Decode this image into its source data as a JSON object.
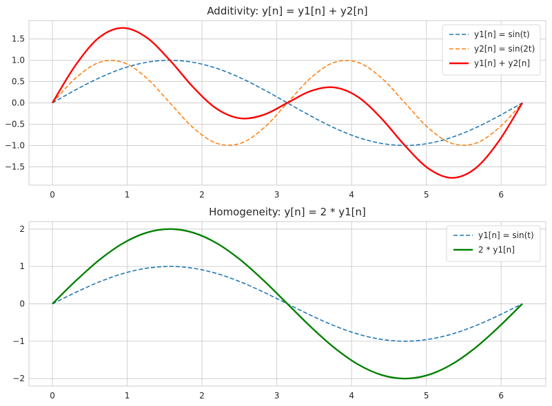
{
  "chart_data": [
    {
      "type": "line",
      "title": "Additivity: y[n] = y1[n] + y2[n]",
      "xlabel": "",
      "ylabel": "",
      "xlim": [
        -0.314,
        6.597
      ],
      "ylim": [
        -1.93,
        1.93
      ],
      "xticks": [
        0,
        1,
        2,
        3,
        4,
        5,
        6
      ],
      "xtick_labels": [
        "0",
        "1",
        "2",
        "3",
        "4",
        "5",
        "6"
      ],
      "yticks": [
        -1.5,
        -1.0,
        -0.5,
        0.0,
        0.5,
        1.0,
        1.5
      ],
      "ytick_labels": [
        "−1.5",
        "−1.0",
        "−0.5",
        "0.0",
        "0.5",
        "1.0",
        "1.5"
      ],
      "grid": true,
      "legend_position": "top-right",
      "series": [
        {
          "name": "y1[n] = sin(t)",
          "color": "#1f77b4",
          "style": "dashed",
          "width": 1.6,
          "x": [
            0,
            0.3142,
            0.6283,
            0.9425,
            1.2566,
            1.5708,
            1.885,
            2.1991,
            2.5133,
            2.8274,
            3.1416,
            3.4558,
            3.7699,
            4.0841,
            4.3982,
            4.7124,
            5.0265,
            5.3407,
            5.6549,
            5.969,
            6.2832
          ],
          "values": [
            0,
            0.309,
            0.588,
            0.809,
            0.951,
            1.0,
            0.951,
            0.809,
            0.588,
            0.309,
            0,
            -0.309,
            -0.588,
            -0.809,
            -0.951,
            -1.0,
            -0.951,
            -0.809,
            -0.588,
            -0.309,
            0
          ]
        },
        {
          "name": "y2[n] = sin(2t)",
          "color": "#ff7f0e",
          "style": "dashed",
          "width": 1.6,
          "x": [
            0,
            0.3142,
            0.6283,
            0.9425,
            1.2566,
            1.5708,
            1.885,
            2.1991,
            2.5133,
            2.8274,
            3.1416,
            3.4558,
            3.7699,
            4.0841,
            4.3982,
            4.7124,
            5.0265,
            5.3407,
            5.6549,
            5.969,
            6.2832
          ],
          "values": [
            0,
            0.588,
            0.951,
            0.951,
            0.588,
            0,
            -0.588,
            -0.951,
            -0.951,
            -0.588,
            0,
            0.588,
            0.951,
            0.951,
            0.588,
            0,
            -0.588,
            -0.951,
            -0.951,
            -0.588,
            0
          ]
        },
        {
          "name": "y1[n] + y2[n]",
          "color": "#ff0000",
          "style": "solid",
          "width": 2.4,
          "x": [
            0,
            0.3142,
            0.6283,
            0.9425,
            1.2566,
            1.5708,
            1.885,
            2.1991,
            2.5133,
            2.8274,
            3.1416,
            3.4558,
            3.7699,
            4.0841,
            4.3982,
            4.7124,
            5.0265,
            5.3407,
            5.6549,
            5.969,
            6.2832
          ],
          "values": [
            0,
            0.897,
            1.539,
            1.76,
            1.539,
            1.0,
            0.363,
            -0.142,
            -0.363,
            -0.279,
            0,
            0.279,
            0.363,
            0.142,
            -0.363,
            -1.0,
            -1.539,
            -1.76,
            -1.539,
            -0.897,
            0
          ]
        }
      ]
    },
    {
      "type": "line",
      "title": "Homogeneity: y[n] = 2 * y1[n]",
      "xlabel": "",
      "ylabel": "",
      "xlim": [
        -0.314,
        6.597
      ],
      "ylim": [
        -2.2,
        2.2
      ],
      "xticks": [
        0,
        1,
        2,
        3,
        4,
        5,
        6
      ],
      "xtick_labels": [
        "0",
        "1",
        "2",
        "3",
        "4",
        "5",
        "6"
      ],
      "yticks": [
        -2,
        -1,
        0,
        1,
        2
      ],
      "ytick_labels": [
        "−2",
        "−1",
        "0",
        "1",
        "2"
      ],
      "grid": true,
      "legend_position": "top-right",
      "series": [
        {
          "name": "y1[n] = sin(t)",
          "color": "#1f77b4",
          "style": "dashed",
          "width": 1.6,
          "x": [
            0,
            0.3142,
            0.6283,
            0.9425,
            1.2566,
            1.5708,
            1.885,
            2.1991,
            2.5133,
            2.8274,
            3.1416,
            3.4558,
            3.7699,
            4.0841,
            4.3982,
            4.7124,
            5.0265,
            5.3407,
            5.6549,
            5.969,
            6.2832
          ],
          "values": [
            0,
            0.309,
            0.588,
            0.809,
            0.951,
            1.0,
            0.951,
            0.809,
            0.588,
            0.309,
            0,
            -0.309,
            -0.588,
            -0.809,
            -0.951,
            -1.0,
            -0.951,
            -0.809,
            -0.588,
            -0.309,
            0
          ]
        },
        {
          "name": "2 * y1[n]",
          "color": "#008000",
          "style": "solid",
          "width": 2.4,
          "x": [
            0,
            0.3142,
            0.6283,
            0.9425,
            1.2566,
            1.5708,
            1.885,
            2.1991,
            2.5133,
            2.8274,
            3.1416,
            3.4558,
            3.7699,
            4.0841,
            4.3982,
            4.7124,
            5.0265,
            5.3407,
            5.6549,
            5.969,
            6.2832
          ],
          "values": [
            0,
            0.618,
            1.176,
            1.618,
            1.902,
            2.0,
            1.902,
            1.618,
            1.176,
            0.618,
            0,
            -0.618,
            -1.176,
            -1.618,
            -1.902,
            -2.0,
            -1.902,
            -1.618,
            -1.176,
            -0.618,
            0
          ]
        }
      ]
    }
  ]
}
